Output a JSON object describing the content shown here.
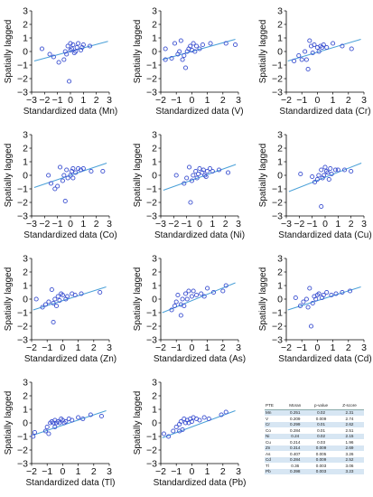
{
  "chart_data": [
    {
      "type": "scatter",
      "xlabel": "Standardized data (Mn)",
      "ylabel": "Spatially lagged",
      "xlim": [
        -3,
        3
      ],
      "ylim": [
        -3,
        3
      ],
      "xticks": [
        "−3",
        "−2",
        "−1",
        "0",
        "1",
        "2",
        "3"
      ],
      "yticks": [
        "3",
        "2",
        "1",
        "0",
        "−1",
        "−2",
        "−3"
      ],
      "trend": [
        [
          -2.8,
          -0.7
        ],
        [
          2.9,
          0.75
        ]
      ],
      "x": [
        -2.2,
        -1.6,
        -1.3,
        -0.9,
        -0.5,
        -0.3,
        -0.2,
        0.0,
        0.1,
        0.2,
        0.3,
        0.5,
        0.6,
        0.8,
        1.0,
        -0.4,
        0.0,
        0.4,
        0.9,
        1.5,
        -0.1
      ],
      "y": [
        0.2,
        -0.2,
        -0.4,
        -0.8,
        -0.6,
        -0.2,
        0.4,
        0.6,
        0.2,
        0.5,
        -0.1,
        0.3,
        0.6,
        0.1,
        0.5,
        0.0,
        0.1,
        0.0,
        0.3,
        0.4,
        -2.2
      ]
    },
    {
      "type": "scatter",
      "xlabel": "Standardized data (V)",
      "ylabel": "Spatially lagged",
      "xlim": [
        -2,
        3
      ],
      "ylim": [
        -3,
        3
      ],
      "xticks": [
        "−2",
        "−1",
        "0",
        "1",
        "2",
        "3"
      ],
      "yticks": [
        "3",
        "2",
        "1",
        "0",
        "−1",
        "−2",
        "−3"
      ],
      "trend": [
        [
          -1.9,
          -0.6
        ],
        [
          2.8,
          0.9
        ]
      ],
      "x": [
        -1.7,
        -1.7,
        -1.3,
        -1.1,
        -0.9,
        -0.8,
        -0.7,
        -0.6,
        -0.5,
        -0.3,
        -0.2,
        -0.1,
        0.0,
        0.1,
        0.2,
        0.3,
        0.5,
        0.7,
        1.2,
        2.2,
        2.8,
        -0.4
      ],
      "y": [
        0.2,
        -0.6,
        -0.5,
        0.6,
        -0.2,
        0.0,
        0.8,
        -0.6,
        -0.3,
        0.0,
        0.2,
        0.4,
        0.1,
        0.6,
        0.0,
        0.4,
        0.2,
        0.5,
        0.6,
        0.6,
        0.5,
        -1.2
      ]
    },
    {
      "type": "scatter",
      "xlabel": "Standardized data (Cr)",
      "ylabel": "Spatially lagged",
      "xlim": [
        -2,
        3
      ],
      "ylim": [
        -3,
        3
      ],
      "xticks": [
        "−2",
        "−1",
        "0",
        "1",
        "2",
        "3"
      ],
      "yticks": [
        "3",
        "2",
        "1",
        "0",
        "−1",
        "−2",
        "−3"
      ],
      "trend": [
        [
          -1.9,
          -0.7
        ],
        [
          2.8,
          0.9
        ]
      ],
      "x": [
        -1.5,
        -1.2,
        -1.0,
        -0.8,
        -0.7,
        -0.5,
        -0.4,
        -0.3,
        -0.2,
        0.0,
        0.1,
        0.2,
        0.4,
        0.6,
        1.0,
        1.6,
        2.2,
        -0.6,
        0.3
      ],
      "y": [
        -0.7,
        -0.3,
        -0.6,
        0.0,
        -0.6,
        0.8,
        0.4,
        -0.1,
        0.5,
        0.3,
        0.0,
        0.4,
        0.5,
        0.3,
        0.6,
        0.4,
        0.2,
        -1.3,
        0.3
      ]
    },
    {
      "type": "scatter",
      "xlabel": "Standardized data (Co)",
      "ylabel": "Spatially lagged",
      "xlim": [
        -3,
        3
      ],
      "ylim": [
        -3,
        3
      ],
      "xticks": [
        "−3",
        "−2",
        "−1",
        "0",
        "1",
        "2",
        "3"
      ],
      "yticks": [
        "3",
        "2",
        "1",
        "0",
        "−1",
        "−2",
        "−3"
      ],
      "trend": [
        [
          -2.8,
          -0.9
        ],
        [
          2.8,
          0.9
        ]
      ],
      "x": [
        -1.7,
        -1.5,
        -1.2,
        -1.0,
        -0.8,
        -0.6,
        -0.5,
        -0.3,
        -0.2,
        0.0,
        0.1,
        0.2,
        0.4,
        0.6,
        0.8,
        1.0,
        1.6,
        2.5,
        -0.4,
        0.2
      ],
      "y": [
        0.0,
        -0.6,
        -1.0,
        -0.8,
        0.6,
        -0.4,
        0.0,
        0.4,
        -0.2,
        0.0,
        0.3,
        0.5,
        0.2,
        0.5,
        0.4,
        0.5,
        0.3,
        0.3,
        -1.9,
        -0.2
      ]
    },
    {
      "type": "scatter",
      "xlabel": "Standardized data (Ni)",
      "ylabel": "Spatially lagged",
      "xlim": [
        -3,
        3
      ],
      "ylim": [
        -3,
        3
      ],
      "xticks": [
        "−3",
        "−2",
        "−1",
        "0",
        "1",
        "2",
        "3"
      ],
      "yticks": [
        "3",
        "2",
        "1",
        "0",
        "−1",
        "−2",
        "−3"
      ],
      "trend": [
        [
          -2.8,
          -1.1
        ],
        [
          2.8,
          0.8
        ]
      ],
      "x": [
        -1.8,
        -1.2,
        -1.0,
        -0.8,
        -0.6,
        -0.5,
        -0.3,
        -0.2,
        -0.1,
        0.0,
        0.2,
        0.3,
        0.4,
        0.6,
        0.8,
        1.0,
        1.5,
        2.2,
        -0.7,
        0.5
      ],
      "y": [
        0.0,
        -0.6,
        -0.2,
        0.6,
        -0.4,
        0.0,
        0.3,
        -0.2,
        0.1,
        0.5,
        0.2,
        0.4,
        0.0,
        0.3,
        0.5,
        0.3,
        0.4,
        0.2,
        -2.0,
        -0.1
      ]
    },
    {
      "type": "scatter",
      "xlabel": "Standardized data (Cu)",
      "ylabel": "Spatially lagged",
      "xlim": [
        -3,
        3
      ],
      "ylim": [
        -3,
        3
      ],
      "xticks": [
        "−3",
        "−2",
        "−1",
        "0",
        "1",
        "2",
        "3"
      ],
      "yticks": [
        "3",
        "2",
        "1",
        "0",
        "−1",
        "−2",
        "−3"
      ],
      "trend": [
        [
          -2.8,
          -1.2
        ],
        [
          2.8,
          0.9
        ]
      ],
      "x": [
        -1.9,
        -1.0,
        -0.8,
        -0.6,
        -0.5,
        -0.3,
        -0.2,
        -0.1,
        0.0,
        0.1,
        0.2,
        0.4,
        0.5,
        0.8,
        1.0,
        1.5,
        2.0,
        -0.3,
        0.3
      ],
      "y": [
        0.1,
        -0.1,
        -0.5,
        -0.3,
        0.0,
        0.4,
        -0.2,
        0.0,
        0.6,
        0.3,
        0.2,
        0.5,
        0.1,
        0.4,
        0.4,
        0.4,
        0.3,
        -2.3,
        -0.3
      ]
    },
    {
      "type": "scatter",
      "xlabel": "Standardized data (Zn)",
      "ylabel": "Spatially lagged",
      "xlim": [
        -2,
        3
      ],
      "ylim": [
        -3,
        3
      ],
      "xticks": [
        "−2",
        "−1",
        "0",
        "1",
        "2",
        "3"
      ],
      "yticks": [
        "3",
        "2",
        "1",
        "0",
        "−1",
        "−2",
        "−3"
      ],
      "trend": [
        [
          -1.9,
          -0.8
        ],
        [
          2.8,
          0.9
        ]
      ],
      "x": [
        -1.7,
        -1.3,
        -1.1,
        -0.9,
        -0.7,
        -0.6,
        -0.5,
        -0.3,
        -0.2,
        -0.1,
        0.0,
        0.2,
        0.3,
        0.6,
        0.8,
        1.2,
        2.4,
        -0.6,
        -0.4
      ],
      "y": [
        0.0,
        -0.6,
        -0.4,
        -0.2,
        0.7,
        -0.3,
        0.0,
        0.2,
        -0.1,
        0.4,
        0.3,
        0.0,
        0.2,
        0.4,
        0.3,
        0.4,
        0.5,
        -1.7,
        -0.5
      ]
    },
    {
      "type": "scatter",
      "xlabel": "Standardized data (As)",
      "ylabel": "Spatially lagged",
      "xlim": [
        -2,
        3
      ],
      "ylim": [
        -3,
        3
      ],
      "xticks": [
        "−2",
        "−1",
        "0",
        "1",
        "2",
        "3"
      ],
      "yticks": [
        "3",
        "2",
        "1",
        "0",
        "−1",
        "−2",
        "−3"
      ],
      "trend": [
        [
          -1.9,
          -1.0
        ],
        [
          2.8,
          1.2
        ]
      ],
      "x": [
        -1.3,
        -1.1,
        -1.0,
        -0.9,
        -0.7,
        -0.6,
        -0.5,
        -0.4,
        -0.3,
        -0.2,
        0.0,
        0.1,
        0.3,
        0.6,
        0.8,
        1.0,
        1.4,
        2.0,
        2.2,
        -0.7
      ],
      "y": [
        -0.8,
        -0.5,
        -0.2,
        0.3,
        -0.4,
        0.0,
        -0.5,
        0.4,
        0.0,
        0.6,
        0.2,
        0.6,
        0.3,
        0.4,
        0.2,
        0.8,
        0.5,
        0.6,
        1.0,
        -1.2
      ]
    },
    {
      "type": "scatter",
      "xlabel": "Standardized data (Cd)",
      "ylabel": "Spatially lagged",
      "xlim": [
        -2,
        3
      ],
      "ylim": [
        -3,
        3
      ],
      "xticks": [
        "−2",
        "−1",
        "0",
        "1",
        "2",
        "3"
      ],
      "yticks": [
        "3",
        "2",
        "1",
        "0",
        "−1",
        "−2",
        "−3"
      ],
      "trend": [
        [
          -1.9,
          -0.8
        ],
        [
          2.8,
          0.9
        ]
      ],
      "x": [
        -1.4,
        -1.1,
        -0.9,
        -0.7,
        -0.6,
        -0.5,
        -0.3,
        -0.2,
        -0.1,
        0.0,
        0.1,
        0.3,
        0.4,
        0.6,
        0.9,
        1.2,
        1.6,
        2.1,
        -0.4
      ],
      "y": [
        0.1,
        -0.5,
        -0.2,
        0.0,
        -0.6,
        0.8,
        -0.3,
        0.2,
        0.0,
        0.3,
        0.4,
        0.1,
        0.3,
        0.5,
        0.3,
        0.4,
        0.5,
        0.6,
        -2.0
      ]
    },
    {
      "type": "scatter",
      "xlabel": "Standardized data (Tl)",
      "ylabel": "Spatially lagged",
      "xlim": [
        -2,
        3
      ],
      "ylim": [
        -3,
        3
      ],
      "xticks": [
        "−2",
        "−1",
        "0",
        "1",
        "2",
        "3"
      ],
      "yticks": [
        "3",
        "2",
        "1",
        "0",
        "−1",
        "−2",
        "−3"
      ],
      "trend": [
        [
          -1.9,
          -0.9
        ],
        [
          2.8,
          0.9
        ]
      ],
      "x": [
        -1.9,
        -1.8,
        -1.1,
        -1.0,
        -0.9,
        -0.8,
        -0.7,
        -0.6,
        -0.5,
        -0.4,
        -0.3,
        -0.2,
        -0.1,
        0.0,
        0.2,
        0.4,
        0.6,
        1.0,
        1.3,
        1.8,
        2.5,
        -0.5,
        0.1
      ],
      "y": [
        -1.0,
        -0.7,
        -0.6,
        -0.3,
        -0.8,
        0.0,
        0.1,
        0.0,
        0.2,
        0.0,
        0.1,
        0.0,
        0.3,
        0.2,
        0.1,
        0.3,
        0.2,
        0.4,
        0.3,
        0.6,
        0.5,
        -0.3,
        0.0
      ]
    },
    {
      "type": "scatter",
      "xlabel": "Standardized data (Pb)",
      "ylabel": "Spatially lagged",
      "xlim": [
        -2,
        3
      ],
      "ylim": [
        -3,
        3
      ],
      "xticks": [
        "−2",
        "−1",
        "0",
        "1",
        "2",
        "3"
      ],
      "yticks": [
        "3",
        "2",
        "1",
        "0",
        "−1",
        "−2",
        "−3"
      ],
      "trend": [
        [
          -1.9,
          -1.1
        ],
        [
          2.8,
          0.9
        ]
      ],
      "x": [
        -1.8,
        -1.5,
        -1.2,
        -1.0,
        -0.8,
        -0.7,
        -0.6,
        -0.5,
        -0.4,
        -0.3,
        -0.2,
        -0.1,
        0.0,
        0.1,
        0.3,
        0.5,
        0.8,
        1.1,
        1.9,
        2.2,
        -0.8
      ],
      "y": [
        -0.8,
        -1.0,
        -0.6,
        -0.3,
        -0.1,
        0.1,
        -0.5,
        0.3,
        0.0,
        0.2,
        0.0,
        0.3,
        0.1,
        0.4,
        0.3,
        0.2,
        0.4,
        0.3,
        0.6,
        0.8,
        -0.6
      ]
    },
    {
      "type": "table",
      "columns": [
        "PTE",
        "Moran",
        "p-value",
        "Z-score"
      ],
      "rows": [
        [
          "Mn",
          "0.251",
          "0.02",
          "2.31"
        ],
        [
          "V",
          "0.209",
          "0.009",
          "2.74"
        ],
        [
          "Cr",
          "0.299",
          "0.01",
          "2.62"
        ],
        [
          "Co",
          "0.284",
          "0.01",
          "2.51"
        ],
        [
          "Ni",
          "0.24",
          "0.02",
          "2.15"
        ],
        [
          "Cu",
          "0.214",
          "0.03",
          "1.96"
        ],
        [
          "Zn",
          "0.314",
          "0.009",
          "2.69"
        ],
        [
          "As",
          "0.407",
          "0.005",
          "3.26"
        ],
        [
          "Cd",
          "0.284",
          "0.009",
          "2.52"
        ],
        [
          "Tl",
          "0.36",
          "0.003",
          "3.06"
        ],
        [
          "Pb",
          "0.398",
          "0.003",
          "3.23"
        ]
      ]
    }
  ],
  "style": {
    "point_color": "#3a4fd0",
    "trend_color": "#4aa0d8",
    "axis_color": "#000000",
    "row_band_color": "#d7e6f3"
  }
}
